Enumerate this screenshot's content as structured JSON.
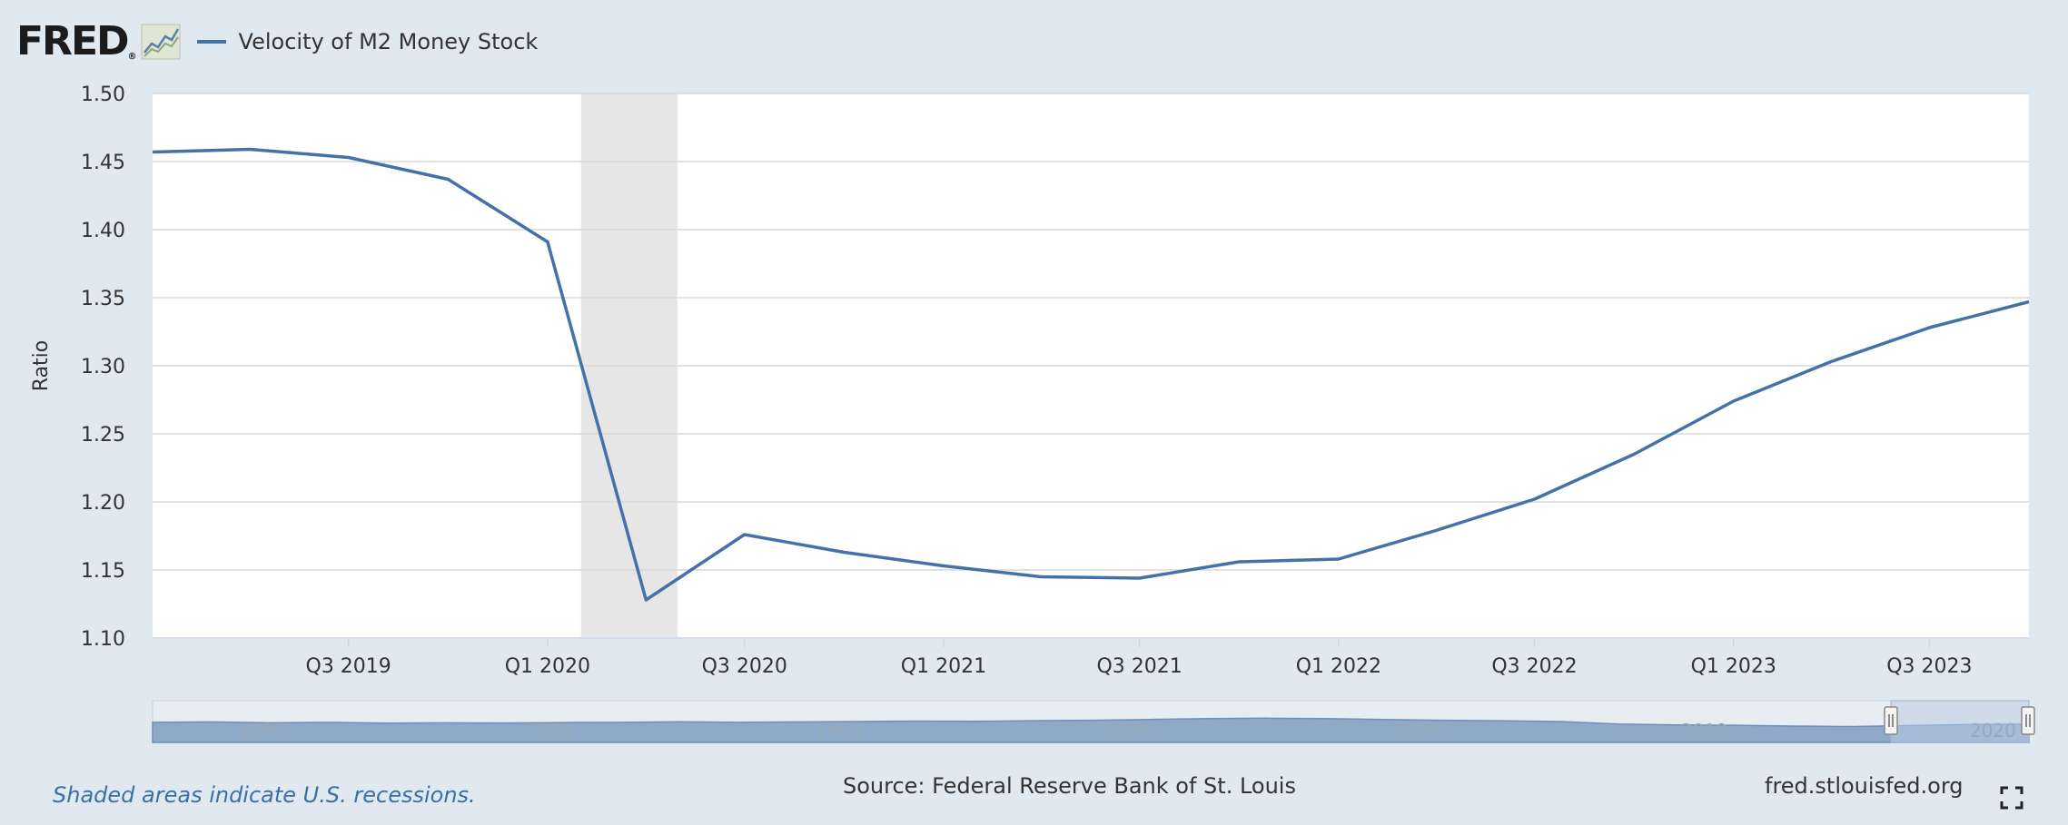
{
  "header": {
    "logo_text": "FRED",
    "logo_mark": "®",
    "graph_icon": "line-graph-icon",
    "legend_label": "Velocity of M2 Money Stock"
  },
  "colors": {
    "series": "#4472a8",
    "recession": "#e6e6e6",
    "page_bg": "#e1e9f0",
    "plot_bg": "#ffffff",
    "navigator_fill": "#8fa9c9",
    "navigator_selected": "#b8cbe4"
  },
  "chart_data": {
    "type": "line",
    "title": "",
    "xlabel": "",
    "ylabel": "Ratio",
    "ylim": [
      1.1,
      1.5
    ],
    "yticks": [
      "1.10",
      "1.15",
      "1.20",
      "1.25",
      "1.30",
      "1.35",
      "1.40",
      "1.45",
      "1.50"
    ],
    "xticks": [
      "Q3 2019",
      "Q1 2020",
      "Q3 2020",
      "Q1 2021",
      "Q3 2021",
      "Q1 2022",
      "Q3 2022",
      "Q1 2023",
      "Q3 2023"
    ],
    "grid": true,
    "legend": "top-left",
    "recessions": [
      {
        "start": "2020-02-01",
        "end": "2020-04-30"
      }
    ],
    "series": [
      {
        "name": "Velocity of M2 Money Stock",
        "x": [
          "2019-01-01",
          "2019-04-01",
          "2019-07-01",
          "2019-10-01",
          "2020-01-01",
          "2020-04-01",
          "2020-07-01",
          "2020-10-01",
          "2021-01-01",
          "2021-04-01",
          "2021-07-01",
          "2021-10-01",
          "2022-01-01",
          "2022-04-01",
          "2022-07-01",
          "2022-10-01",
          "2023-01-01",
          "2023-04-01",
          "2023-07-01",
          "2023-10-01"
        ],
        "values": [
          1.457,
          1.459,
          1.453,
          1.437,
          1.391,
          1.128,
          1.176,
          1.163,
          1.153,
          1.145,
          1.144,
          1.156,
          1.158,
          1.179,
          1.202,
          1.235,
          1.274,
          1.303,
          1.328,
          1.347
        ]
      }
    ],
    "navigator": {
      "labels": [
        "1960",
        "1970",
        "1980",
        "1990",
        "2000",
        "2010",
        "2020"
      ]
    }
  },
  "footer": {
    "note": "Shaded areas indicate U.S. recessions.",
    "source": "Source: Federal Reserve Bank of St. Louis",
    "site": "fred.stlouisfed.org",
    "fullscreen_icon": "fullscreen-icon"
  }
}
